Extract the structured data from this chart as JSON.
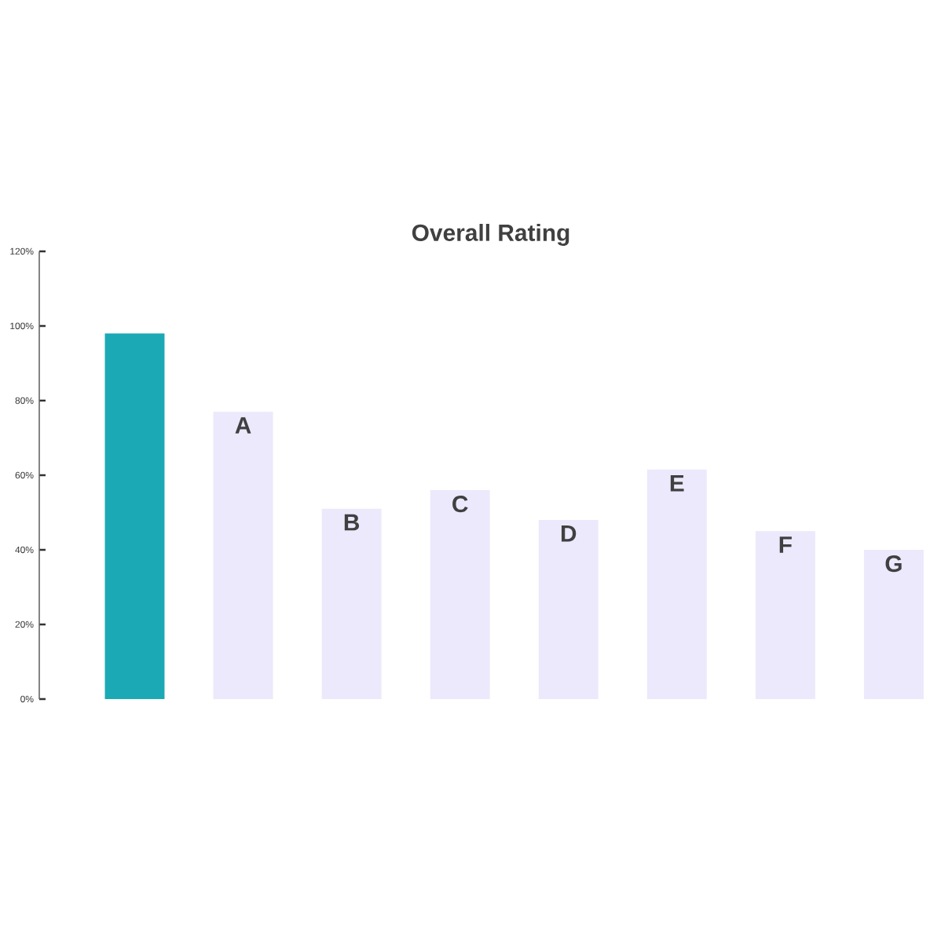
{
  "chart_data": {
    "type": "bar",
    "title": "Overall Rating",
    "categories": [
      null,
      "A",
      "B",
      "C",
      "D",
      "E",
      "F",
      "G"
    ],
    "values": [
      98,
      77,
      51,
      56,
      48,
      61.5,
      45,
      40
    ],
    "colors": [
      "#1aa9b5",
      "#ebe9fb",
      "#ebe9fb",
      "#ebe9fb",
      "#ebe9fb",
      "#ebe9fb",
      "#ebe9fb",
      "#ebe9fb"
    ],
    "ylim": [
      0,
      120
    ],
    "yticks": [
      {
        "value": 0,
        "label": "0%"
      },
      {
        "value": 20,
        "label": "20%"
      },
      {
        "value": 40,
        "label": "40%"
      },
      {
        "value": 60,
        "label": "60%"
      },
      {
        "value": 80,
        "label": "80%"
      },
      {
        "value": 100,
        "label": "100%"
      },
      {
        "value": 120,
        "label": "120%"
      }
    ],
    "grid": false
  }
}
